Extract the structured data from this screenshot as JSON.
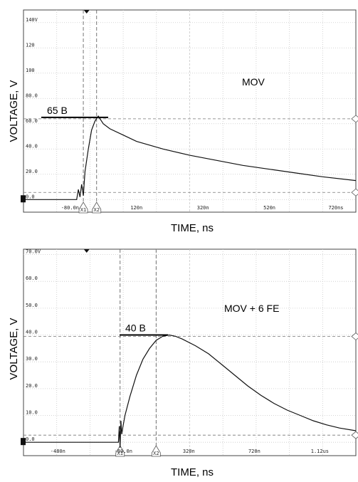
{
  "chart_data": [
    {
      "type": "line",
      "title": "MOV",
      "xlabel": "TIME, ns",
      "ylabel": "VOLTAGE, V",
      "x_unit": "ns",
      "xlim": [
        -220,
        780
      ],
      "ylim": [
        -10,
        150
      ],
      "x_ticks": [
        "-80.0n",
        "120n",
        "320n",
        "520n",
        "720ns"
      ],
      "x_tick_values": [
        -80,
        120,
        320,
        520,
        720
      ],
      "y_ticks": [
        "140V",
        "120",
        "100",
        "80.0",
        "60.0",
        "40.0",
        "20.0",
        "0.0"
      ],
      "y_tick_values": [
        140,
        120,
        100,
        80,
        60,
        40,
        20,
        0
      ],
      "cursors": [
        {
          "label": "X1",
          "x": -40
        },
        {
          "label": "X2",
          "x": 0
        }
      ],
      "annotation": {
        "text": "65 B",
        "value": 65
      },
      "grid": true,
      "series": [
        {
          "x": [
            -220,
            -60,
            -55,
            -50,
            -45,
            -40,
            -35,
            -25,
            -15,
            -5,
            0,
            5,
            10,
            20,
            40,
            80,
            120,
            200,
            280,
            360,
            440,
            520,
            600,
            680,
            780
          ],
          "y": [
            0,
            0,
            8,
            2,
            12,
            3,
            22,
            40,
            55,
            62,
            64,
            66,
            64,
            60,
            56,
            51,
            46,
            40,
            35,
            31,
            27,
            24,
            21,
            18,
            15
          ]
        }
      ]
    },
    {
      "type": "line",
      "title": "MOV + 6 FE",
      "xlabel": "TIME, ns",
      "ylabel": "VOLTAGE, V",
      "x_unit": "ns",
      "xlim": [
        -690,
        1340
      ],
      "ylim": [
        -5,
        72
      ],
      "x_ticks": [
        "-480n",
        "-80.0n",
        "320n",
        "720n",
        "1.12us"
      ],
      "x_tick_values": [
        -480,
        -80,
        320,
        720,
        1120
      ],
      "y_ticks": [
        "70.0V",
        "60.0",
        "50.0",
        "40.0",
        "30.0",
        "20.0",
        "10.0",
        "0.0"
      ],
      "y_tick_values": [
        70,
        60,
        50,
        40,
        30,
        20,
        10,
        0
      ],
      "cursors": [
        {
          "label": "X1",
          "x": -100
        },
        {
          "label": "X2",
          "x": 120
        }
      ],
      "annotation": {
        "text": "40 B",
        "value": 40
      },
      "grid": true,
      "series": [
        {
          "x": [
            -690,
            -110,
            -105,
            -100,
            -95,
            -90,
            -85,
            -70,
            -40,
            0,
            40,
            80,
            120,
            160,
            200,
            240,
            280,
            360,
            440,
            520,
            600,
            680,
            760,
            840,
            920,
            1000,
            1080,
            1160,
            1240,
            1340
          ],
          "y": [
            0,
            0,
            6,
            -2,
            8,
            3,
            5,
            10,
            17,
            25,
            31,
            35,
            38,
            39.5,
            40,
            39.5,
            38.5,
            36,
            33,
            29,
            25,
            21,
            17.5,
            14.5,
            12,
            10,
            8,
            6.5,
            5.3,
            4.3
          ]
        }
      ]
    }
  ]
}
